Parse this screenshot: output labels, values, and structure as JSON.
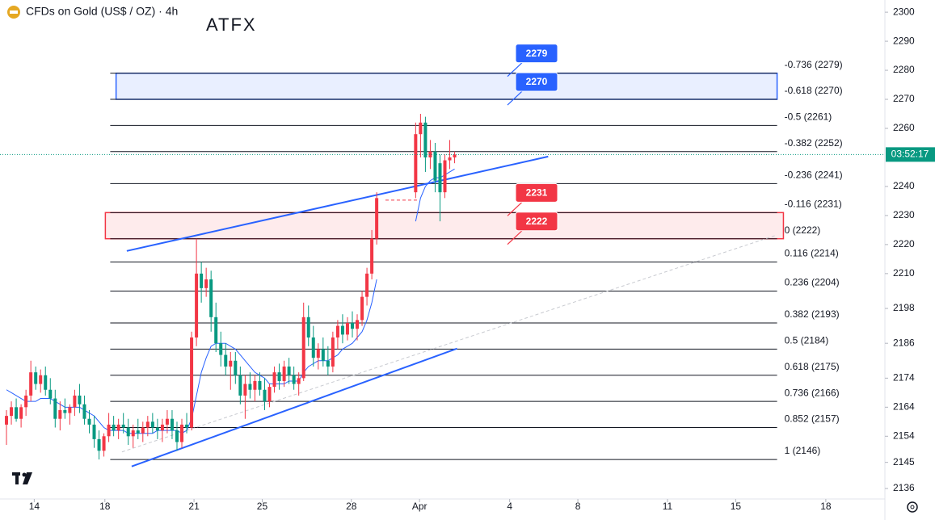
{
  "header": {
    "title": "CFDs on Gold (US$ / OZ) · 4h",
    "brand": "ATFX"
  },
  "chart_data": {
    "type": "candlestick",
    "open": [
      2158,
      2161,
      2164,
      2160,
      2164,
      2168,
      2176,
      2172,
      2175,
      2170,
      2167,
      2160,
      2163,
      2162,
      2164,
      2168,
      2165,
      2160,
      2158,
      2153,
      2149,
      2154,
      2158,
      2156,
      2158,
      2157,
      2154,
      2156,
      2155,
      2157,
      2159,
      2157,
      2156,
      2158,
      2160,
      2156,
      2152,
      2158,
      2157,
      2188,
      2210,
      2205,
      2208,
      2195,
      2186,
      2182,
      2178,
      2180,
      2175,
      2168,
      2172,
      2170,
      2173,
      2170,
      2166,
      2171,
      2176,
      2173,
      2178,
      2175,
      2172,
      2174,
      2195,
      2188,
      2181,
      2184,
      2180,
      2178,
      2188,
      2192,
      2189,
      2193,
      2191,
      2194,
      2202,
      2210,
      2222,
      null,
      null,
      null,
      null,
      null,
      null,
      null,
      2238,
      2258,
      2262,
      2250,
      2252,
      2248,
      2238,
      2249,
      2250
    ],
    "high": [
      2163,
      2166,
      2167,
      2165,
      2170,
      2180,
      2178,
      2177,
      2178,
      2174,
      2170,
      2166,
      2167,
      2165,
      2170,
      2172,
      2168,
      2163,
      2161,
      2156,
      2155,
      2162,
      2161,
      2160,
      2162,
      2160,
      2158,
      2160,
      2159,
      2161,
      2162,
      2160,
      2160,
      2163,
      2163,
      2159,
      2160,
      2162,
      2190,
      2222,
      2214,
      2212,
      2211,
      2200,
      2190,
      2186,
      2183,
      2183,
      2178,
      2175,
      2176,
      2175,
      2176,
      2174,
      2172,
      2178,
      2179,
      2180,
      2181,
      2178,
      2176,
      2200,
      2199,
      2192,
      2186,
      2188,
      2185,
      2190,
      2194,
      2196,
      2195,
      2197,
      2196,
      2204,
      2212,
      2225,
      2238,
      null,
      null,
      null,
      null,
      null,
      null,
      null,
      2262,
      2265,
      2264,
      2256,
      2255,
      2251,
      2251,
      2256,
      2252
    ],
    "low": [
      2151,
      2158,
      2159,
      2157,
      2161,
      2166,
      2170,
      2169,
      2168,
      2165,
      2157,
      2156,
      2160,
      2158,
      2161,
      2162,
      2158,
      2155,
      2150,
      2146,
      2147,
      2152,
      2154,
      2153,
      2155,
      2151,
      2150,
      2153,
      2152,
      2154,
      2155,
      2153,
      2152,
      2155,
      2153,
      2149,
      2150,
      2155,
      2156,
      2185,
      2200,
      2202,
      2190,
      2183,
      2178,
      2175,
      2170,
      2172,
      2165,
      2160,
      2167,
      2166,
      2168,
      2163,
      2164,
      2169,
      2170,
      2171,
      2172,
      2170,
      2168,
      2173,
      2185,
      2178,
      2177,
      2178,
      2175,
      2176,
      2184,
      2186,
      2187,
      2188,
      2187,
      2192,
      2199,
      2208,
      2220,
      null,
      null,
      null,
      null,
      null,
      null,
      null,
      2236,
      2250,
      2245,
      2246,
      2238,
      2228,
      2236,
      2246,
      2248
    ],
    "close": [
      2161,
      2164,
      2160,
      2164,
      2168,
      2176,
      2172,
      2175,
      2170,
      2167,
      2160,
      2163,
      2162,
      2164,
      2168,
      2165,
      2160,
      2158,
      2153,
      2149,
      2154,
      2158,
      2156,
      2158,
      2157,
      2154,
      2156,
      2155,
      2157,
      2159,
      2157,
      2156,
      2158,
      2160,
      2156,
      2152,
      2158,
      2157,
      2188,
      2210,
      2205,
      2208,
      2195,
      2186,
      2182,
      2178,
      2180,
      2175,
      2168,
      2172,
      2170,
      2173,
      2170,
      2166,
      2171,
      2176,
      2173,
      2178,
      2175,
      2172,
      2174,
      2195,
      2188,
      2181,
      2184,
      2180,
      2178,
      2188,
      2192,
      2189,
      2193,
      2191,
      2194,
      2202,
      2210,
      2222,
      2236,
      null,
      null,
      null,
      null,
      null,
      null,
      null,
      2258,
      2262,
      2250,
      2252,
      2242,
      2238,
      2249,
      2250,
      2251
    ],
    "up_color": "#f23645",
    "down_color": "#089981",
    "ma": {
      "color": "#2962ff",
      "values": [
        2170,
        2169,
        2168,
        2167,
        2166,
        2166,
        2166,
        2167,
        2167,
        2167,
        2166,
        2165,
        2164,
        2164,
        2164,
        2164,
        2163,
        2162,
        2161,
        2159,
        2157,
        2156,
        2156,
        2156,
        2156,
        2155,
        2155,
        2155,
        2155,
        2155,
        2155,
        2156,
        2156,
        2156,
        2156,
        2156,
        2155,
        2156,
        2160,
        2168,
        2176,
        2181,
        2185,
        2186,
        2186,
        2186,
        2185,
        2184,
        2182,
        2180,
        2178,
        2176,
        2175,
        2174,
        2172,
        2172,
        2172,
        2172,
        2173,
        2173,
        2173,
        2176,
        2178,
        2179,
        2180,
        2180,
        2180,
        2181,
        2182,
        2184,
        2185,
        2186,
        2188,
        2190,
        2194,
        2200,
        2208,
        null,
        null,
        null,
        null,
        null,
        null,
        null,
        2228,
        2236,
        2240,
        2242,
        2243,
        2243,
        2244,
        2245,
        2246
      ]
    },
    "xlim": [
      -1.33,
      180.33
    ],
    "xticks": [
      {
        "value": 5.7,
        "label": "14"
      },
      {
        "value": 20.2,
        "label": "18"
      },
      {
        "value": 38.5,
        "label": "21"
      },
      {
        "value": 52.5,
        "label": "25"
      },
      {
        "value": 70.8,
        "label": "28"
      },
      {
        "value": 84.8,
        "label": "Apr"
      },
      {
        "value": 103.3,
        "label": "4"
      },
      {
        "value": 117.3,
        "label": "8"
      },
      {
        "value": 135.7,
        "label": "11"
      },
      {
        "value": 149.7,
        "label": "15"
      },
      {
        "value": 168.2,
        "label": "18"
      }
    ],
    "ylim": [
      2132.4,
      2304.2
    ],
    "yticks": [
      2300,
      2290,
      2280,
      2270,
      2260,
      2240,
      2230,
      2220,
      2210,
      2198,
      2186,
      2174,
      2164,
      2154,
      2145,
      2136
    ],
    "fib_x": [
      21.3,
      158.2
    ],
    "fib_levels": [
      {
        "label": "-0.736 (2279)",
        "value": 2279
      },
      {
        "label": "-0.618 (2270)",
        "value": 2270
      },
      {
        "label": "-0.5 (2261)",
        "value": 2261
      },
      {
        "label": "-0.382 (2252)",
        "value": 2252
      },
      {
        "label": "-0.236 (2241)",
        "value": 2241
      },
      {
        "label": "-0.116 (2231)",
        "value": 2231
      },
      {
        "label": "0 (2222)",
        "value": 2222
      },
      {
        "label": "0.116 (2214)",
        "value": 2214
      },
      {
        "label": "0.236 (2204)",
        "value": 2204
      },
      {
        "label": "0.382 (2193)",
        "value": 2193
      },
      {
        "label": "0.5 (2184)",
        "value": 2184
      },
      {
        "label": "0.618 (2175)",
        "value": 2175
      },
      {
        "label": "0.736 (2166)",
        "value": 2166
      },
      {
        "label": "0.852 (2157)",
        "value": 2157
      },
      {
        "label": "1 (2146)",
        "value": 2146
      }
    ],
    "zones": [
      {
        "from": 2270,
        "to": 2279,
        "x": [
          22.5,
          158.2
        ],
        "color": "#2962ff"
      },
      {
        "from": 2222,
        "to": 2231,
        "x": [
          20.3,
          159.5
        ],
        "color": "#f23645"
      }
    ],
    "trendlines": [
      {
        "x": [
          24.7,
          111.2
        ],
        "y": [
          2217.8,
          2250.3
        ],
        "color": "#2962ff",
        "dashed": false
      },
      {
        "x": [
          25.7,
          92.5
        ],
        "y": [
          2143.6,
          2184.2
        ],
        "color": "#2962ff",
        "dashed": false
      },
      {
        "x": [
          23.7,
          157.8
        ],
        "y": [
          2148.6,
          2223.1
        ],
        "color": "#c8cad0",
        "dashed": true
      },
      {
        "x": [
          77.8,
          84.5
        ],
        "y": [
          2235.3,
          2235.3
        ],
        "color": "#f23645",
        "dashed": true
      }
    ],
    "countdown": "03:52:17"
  }
}
